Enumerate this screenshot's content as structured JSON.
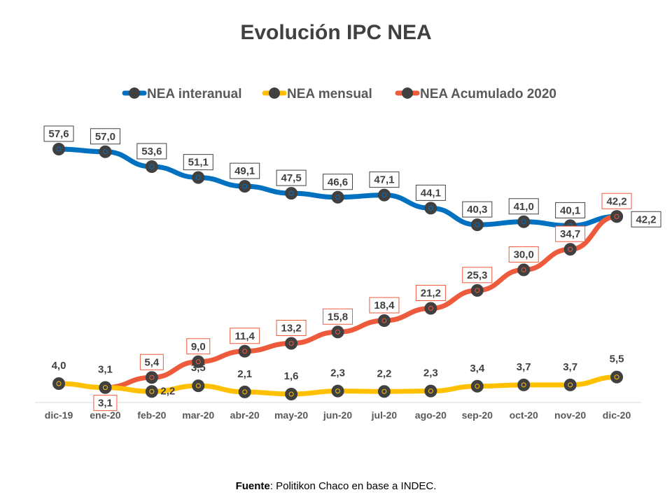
{
  "chart_data": {
    "type": "line",
    "title": "Evolución IPC NEA",
    "categories": [
      "dic-19",
      "ene-20",
      "feb-20",
      "mar-20",
      "abr-20",
      "may-20",
      "jun-20",
      "jul-20",
      "ago-20",
      "sep-20",
      "oct-20",
      "nov-20",
      "dic-20"
    ],
    "series": [
      {
        "name": "NEA interanual",
        "color": "#0070C0",
        "values": [
          57.6,
          57.0,
          53.6,
          51.1,
          49.1,
          47.5,
          46.6,
          47.1,
          44.1,
          40.3,
          41.0,
          40.1,
          42.2
        ],
        "labels": [
          "57,6",
          "57,0",
          "53,6",
          "51,1",
          "49,1",
          "47,5",
          "46,6",
          "47,1",
          "44,1",
          "40,3",
          "41,0",
          "40,1",
          "42,2"
        ]
      },
      {
        "name": "NEA mensual",
        "color": "#FFC000",
        "values": [
          4.0,
          3.1,
          2.2,
          3.5,
          2.1,
          1.6,
          2.3,
          2.2,
          2.3,
          3.4,
          3.7,
          3.7,
          5.5
        ],
        "labels": [
          "4,0",
          "3,1",
          "2,2",
          "3,5",
          "2,1",
          "1,6",
          "2,3",
          "2,2",
          "2,3",
          "3,4",
          "3,7",
          "3,7",
          "5,5"
        ]
      },
      {
        "name": "NEA Acumulado 2020",
        "color": "#EE5A3C",
        "values": [
          null,
          3.1,
          5.4,
          9.0,
          11.4,
          13.2,
          15.8,
          18.4,
          21.2,
          25.3,
          30.0,
          34.7,
          42.2
        ],
        "labels": [
          null,
          "3,1",
          "5,4",
          "9,0",
          "11,4",
          "13,2",
          "15,8",
          "18,4",
          "21,2",
          "25,3",
          "30,0",
          "34,7",
          "42,2"
        ]
      }
    ],
    "legend": "top",
    "grid": false
  },
  "source": {
    "bold": "Fuente",
    "text": ": Politikon Chaco  en base a INDEC."
  }
}
